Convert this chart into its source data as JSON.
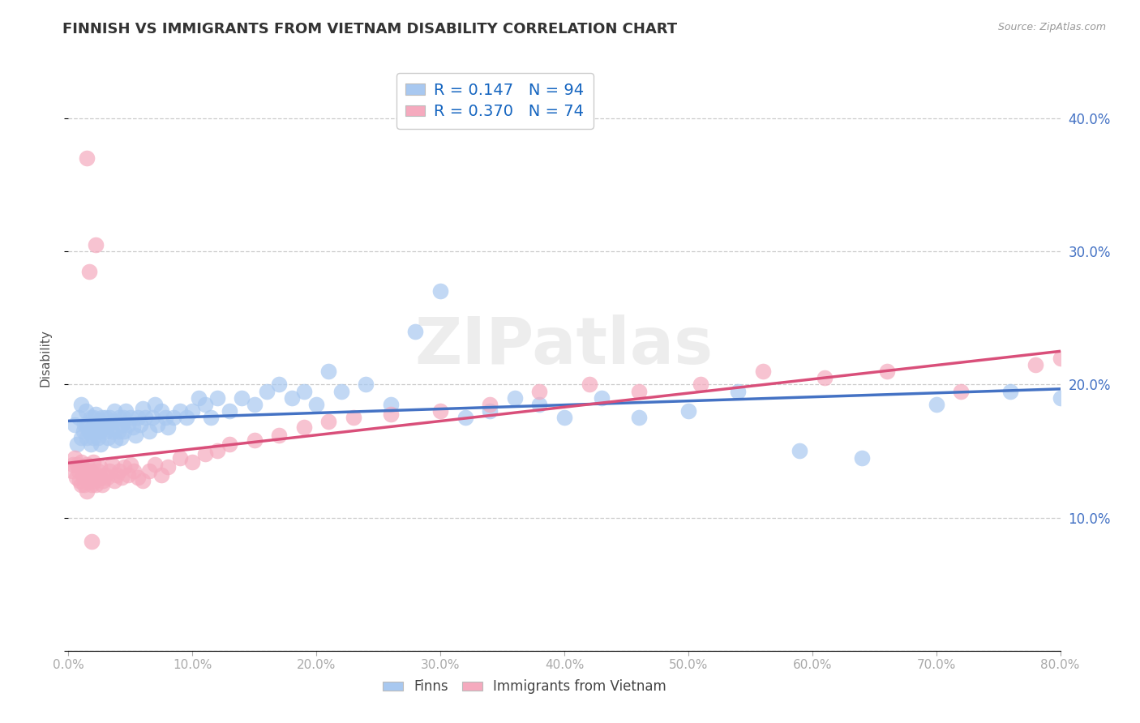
{
  "title": "FINNISH VS IMMIGRANTS FROM VIETNAM DISABILITY CORRELATION CHART",
  "source": "Source: ZipAtlas.com",
  "ylabel": "Disability",
  "xlim": [
    0.0,
    0.8
  ],
  "ylim": [
    0.0,
    0.44
  ],
  "xticks": [
    0.0,
    0.1,
    0.2,
    0.3,
    0.4,
    0.5,
    0.6,
    0.7,
    0.8
  ],
  "yticks": [
    0.0,
    0.1,
    0.2,
    0.3,
    0.4
  ],
  "legend_labels": [
    "Finns",
    "Immigrants from Vietnam"
  ],
  "r_finn": 0.147,
  "n_finn": 94,
  "r_viet": 0.37,
  "n_viet": 74,
  "color_finn": "#A8C8F0",
  "color_viet": "#F5AABE",
  "line_color_finn": "#4472C4",
  "line_color_viet": "#D94F7A",
  "ytick_color": "#4472C4",
  "xtick_color": "#555555",
  "watermark": "ZIPatlas",
  "finn_x": [
    0.005,
    0.007,
    0.008,
    0.01,
    0.01,
    0.012,
    0.013,
    0.014,
    0.015,
    0.015,
    0.017,
    0.018,
    0.018,
    0.019,
    0.02,
    0.02,
    0.021,
    0.022,
    0.022,
    0.023,
    0.024,
    0.025,
    0.025,
    0.026,
    0.027,
    0.028,
    0.03,
    0.03,
    0.031,
    0.032,
    0.033,
    0.034,
    0.035,
    0.036,
    0.037,
    0.038,
    0.04,
    0.041,
    0.042,
    0.043,
    0.044,
    0.045,
    0.046,
    0.048,
    0.05,
    0.052,
    0.054,
    0.056,
    0.058,
    0.06,
    0.062,
    0.065,
    0.068,
    0.07,
    0.072,
    0.075,
    0.078,
    0.08,
    0.085,
    0.09,
    0.095,
    0.1,
    0.105,
    0.11,
    0.115,
    0.12,
    0.13,
    0.14,
    0.15,
    0.16,
    0.17,
    0.18,
    0.19,
    0.2,
    0.21,
    0.22,
    0.24,
    0.26,
    0.28,
    0.3,
    0.32,
    0.34,
    0.36,
    0.38,
    0.4,
    0.43,
    0.46,
    0.5,
    0.54,
    0.59,
    0.64,
    0.7,
    0.76,
    0.8
  ],
  "finn_y": [
    0.17,
    0.155,
    0.175,
    0.16,
    0.185,
    0.165,
    0.17,
    0.18,
    0.16,
    0.17,
    0.165,
    0.175,
    0.155,
    0.165,
    0.175,
    0.16,
    0.17,
    0.165,
    0.178,
    0.168,
    0.16,
    0.173,
    0.165,
    0.155,
    0.175,
    0.168,
    0.165,
    0.175,
    0.17,
    0.16,
    0.175,
    0.168,
    0.165,
    0.172,
    0.18,
    0.158,
    0.165,
    0.175,
    0.16,
    0.17,
    0.175,
    0.165,
    0.18,
    0.17,
    0.175,
    0.168,
    0.162,
    0.175,
    0.17,
    0.182,
    0.175,
    0.165,
    0.175,
    0.185,
    0.17,
    0.18,
    0.175,
    0.168,
    0.175,
    0.18,
    0.175,
    0.18,
    0.19,
    0.185,
    0.175,
    0.19,
    0.18,
    0.19,
    0.185,
    0.195,
    0.2,
    0.19,
    0.195,
    0.185,
    0.21,
    0.195,
    0.2,
    0.185,
    0.24,
    0.27,
    0.175,
    0.18,
    0.19,
    0.185,
    0.175,
    0.19,
    0.175,
    0.18,
    0.195,
    0.15,
    0.145,
    0.185,
    0.195,
    0.19
  ],
  "viet_x": [
    0.003,
    0.004,
    0.005,
    0.006,
    0.007,
    0.008,
    0.009,
    0.01,
    0.01,
    0.011,
    0.012,
    0.013,
    0.014,
    0.015,
    0.015,
    0.016,
    0.017,
    0.018,
    0.019,
    0.02,
    0.02,
    0.021,
    0.022,
    0.023,
    0.024,
    0.025,
    0.026,
    0.027,
    0.028,
    0.03,
    0.031,
    0.033,
    0.035,
    0.037,
    0.039,
    0.041,
    0.043,
    0.045,
    0.048,
    0.05,
    0.053,
    0.056,
    0.06,
    0.065,
    0.07,
    0.075,
    0.08,
    0.09,
    0.1,
    0.11,
    0.12,
    0.13,
    0.15,
    0.17,
    0.19,
    0.21,
    0.23,
    0.26,
    0.3,
    0.34,
    0.38,
    0.42,
    0.46,
    0.51,
    0.56,
    0.61,
    0.66,
    0.72,
    0.78,
    0.8,
    0.015,
    0.017,
    0.019,
    0.022
  ],
  "viet_y": [
    0.135,
    0.14,
    0.145,
    0.13,
    0.14,
    0.135,
    0.128,
    0.142,
    0.125,
    0.138,
    0.13,
    0.125,
    0.135,
    0.14,
    0.12,
    0.132,
    0.128,
    0.135,
    0.125,
    0.13,
    0.142,
    0.128,
    0.125,
    0.132,
    0.135,
    0.138,
    0.13,
    0.125,
    0.128,
    0.132,
    0.13,
    0.135,
    0.14,
    0.128,
    0.132,
    0.135,
    0.13,
    0.138,
    0.132,
    0.14,
    0.135,
    0.13,
    0.128,
    0.135,
    0.14,
    0.132,
    0.138,
    0.145,
    0.142,
    0.148,
    0.15,
    0.155,
    0.158,
    0.162,
    0.168,
    0.172,
    0.175,
    0.178,
    0.18,
    0.185,
    0.195,
    0.2,
    0.195,
    0.2,
    0.21,
    0.205,
    0.21,
    0.195,
    0.215,
    0.22,
    0.37,
    0.285,
    0.082,
    0.305
  ]
}
